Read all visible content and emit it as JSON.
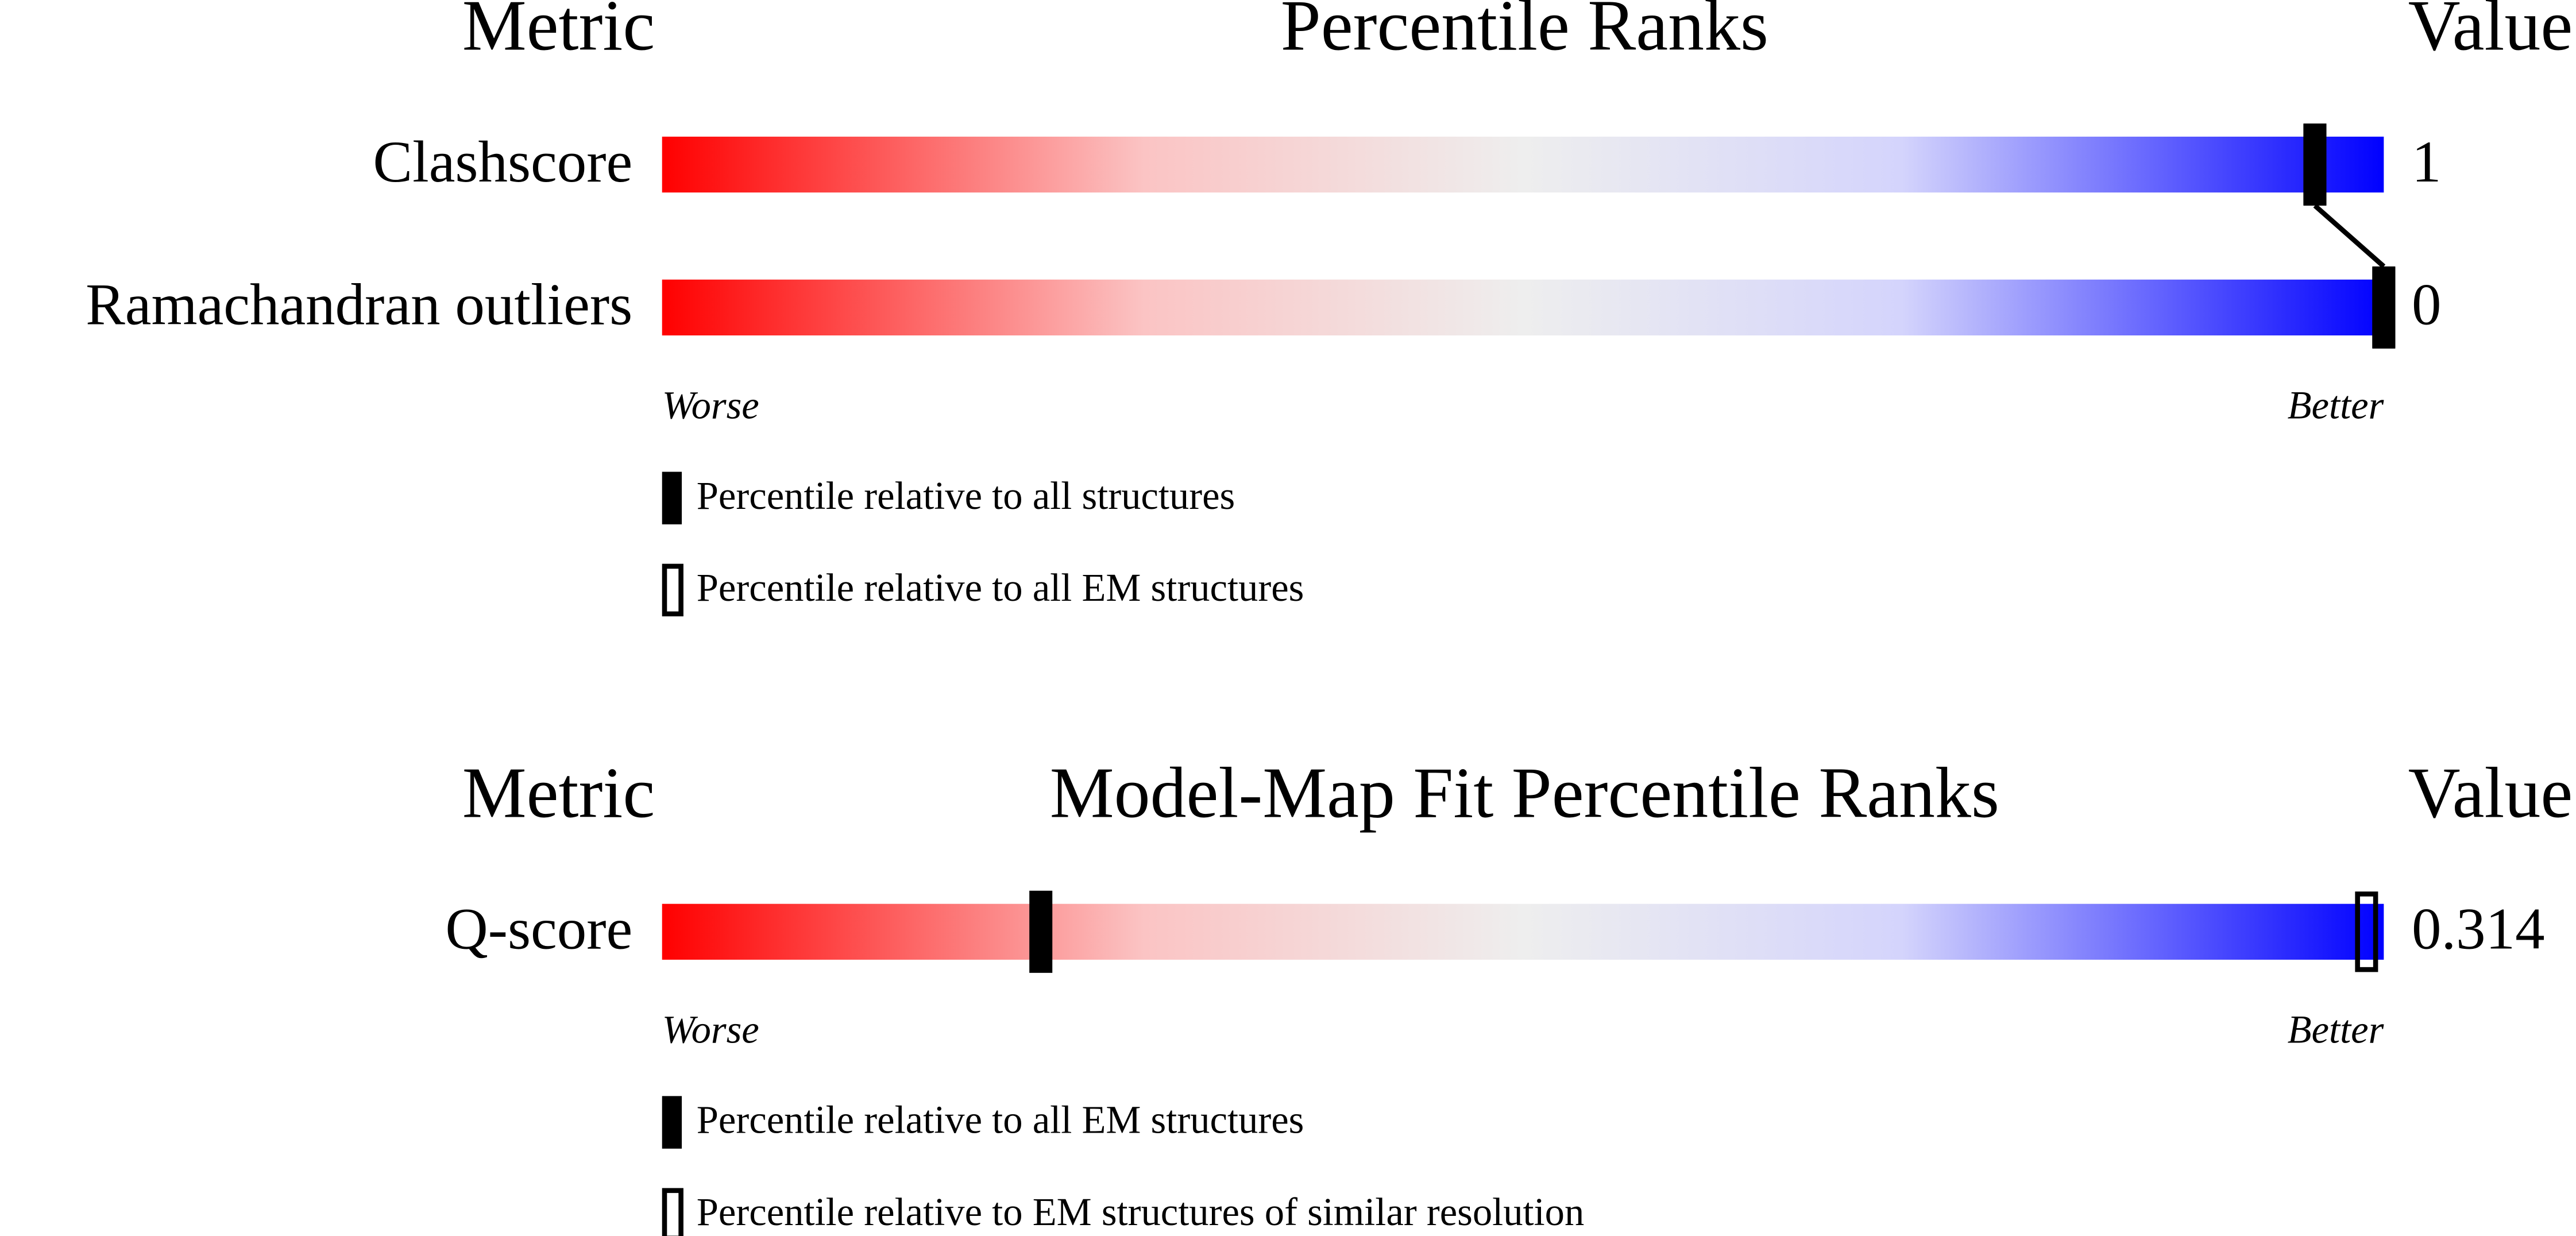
{
  "chart_data": [
    {
      "type": "percentile-slider",
      "title": "Percentile Ranks",
      "metric_header": "Metric",
      "value_header": "Value",
      "categories": [
        "Clashscore",
        "Ramachandran outliers"
      ],
      "metric_values": [
        1,
        0
      ],
      "xlim": [
        0,
        100
      ],
      "low_label": "Worse",
      "high_label": "Better",
      "series": [
        {
          "name": "Percentile relative to all structures",
          "style": "filled",
          "color": "#000000",
          "values": [
            96,
            100
          ]
        },
        {
          "name": "Percentile relative to all EM structures",
          "style": "open",
          "color": "#000000",
          "values": [
            96,
            100
          ]
        }
      ]
    },
    {
      "type": "percentile-slider",
      "title": "Model-Map Fit Percentile Ranks",
      "metric_header": "Metric",
      "value_header": "Value",
      "categories": [
        "Q-score"
      ],
      "metric_values": [
        0.314
      ],
      "xlim": [
        0,
        100
      ],
      "low_label": "Worse",
      "high_label": "Better",
      "series": [
        {
          "name": "Percentile relative to all EM structures",
          "style": "filled",
          "color": "#000000",
          "values": [
            22
          ]
        },
        {
          "name": "Percentile relative to EM structures of similar resolution",
          "style": "open",
          "color": "#000000",
          "values": [
            99
          ]
        }
      ]
    }
  ]
}
